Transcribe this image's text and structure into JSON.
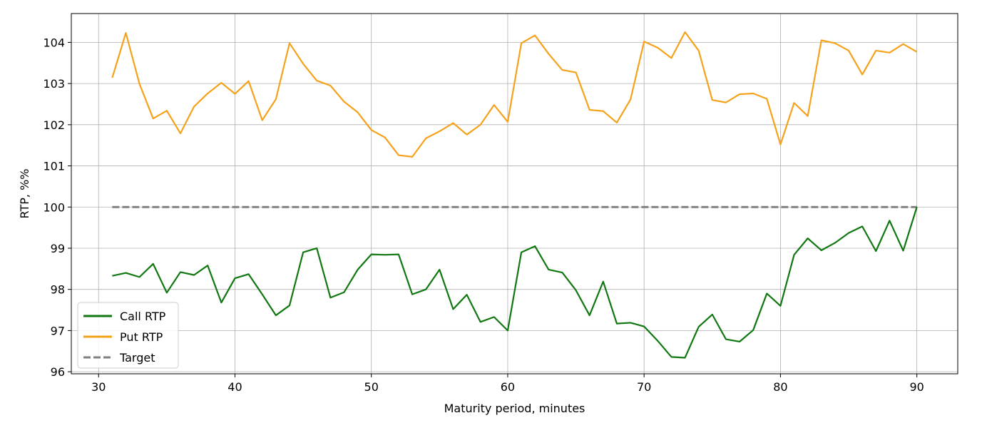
{
  "chart_data": {
    "type": "line",
    "title": "",
    "xlabel": "Maturity period, minutes",
    "ylabel": "RTP, %%",
    "xlim": [
      28,
      93
    ],
    "ylim": [
      95.95,
      104.7
    ],
    "xticks": [
      30,
      40,
      50,
      60,
      70,
      80,
      90
    ],
    "yticks": [
      96,
      97,
      98,
      99,
      100,
      101,
      102,
      103,
      104
    ],
    "grid": true,
    "legend_position": "lower-left",
    "x": [
      31,
      32,
      33,
      34,
      35,
      36,
      37,
      38,
      39,
      40,
      41,
      42,
      43,
      44,
      45,
      46,
      47,
      48,
      49,
      50,
      51,
      52,
      53,
      54,
      55,
      56,
      57,
      58,
      59,
      60,
      61,
      62,
      63,
      64,
      65,
      66,
      67,
      68,
      69,
      70,
      71,
      72,
      73,
      74,
      75,
      76,
      77,
      78,
      79,
      80,
      81,
      82,
      83,
      84,
      85,
      86,
      87,
      88,
      89,
      90
    ],
    "series": [
      {
        "name": "Call RTP",
        "color": "#117711",
        "style": "solid",
        "values": [
          98.33,
          98.4,
          98.3,
          98.62,
          97.92,
          98.42,
          98.35,
          98.58,
          97.68,
          98.27,
          98.37,
          97.88,
          97.37,
          97.61,
          98.9,
          99.0,
          97.8,
          97.93,
          98.48,
          98.85,
          98.84,
          98.85,
          97.88,
          98.0,
          98.48,
          97.52,
          97.87,
          97.21,
          97.33,
          97.0,
          98.9,
          99.05,
          98.48,
          98.41,
          97.98,
          97.37,
          98.19,
          97.17,
          97.19,
          97.1,
          96.75,
          96.36,
          96.34,
          97.09,
          97.39,
          96.79,
          96.73,
          97.01,
          97.9,
          97.6,
          98.84,
          99.24,
          98.95,
          99.13,
          99.37,
          99.53,
          98.93,
          99.67,
          98.94,
          100.0
        ]
      },
      {
        "name": "Put RTP",
        "color": "#f5a21b",
        "style": "solid",
        "values": [
          103.14,
          104.23,
          102.99,
          102.15,
          102.34,
          101.79,
          102.44,
          102.76,
          103.02,
          102.75,
          103.06,
          102.11,
          102.62,
          103.98,
          103.48,
          103.07,
          102.95,
          102.56,
          102.3,
          101.87,
          101.69,
          101.26,
          101.22,
          101.67,
          101.84,
          102.04,
          101.76,
          102.0,
          102.48,
          102.07,
          103.98,
          104.17,
          103.72,
          103.33,
          103.27,
          102.36,
          102.33,
          102.05,
          102.61,
          104.02,
          103.87,
          103.62,
          104.25,
          103.8,
          102.6,
          102.54,
          102.74,
          102.76,
          102.63,
          101.52,
          102.53,
          102.21,
          104.05,
          103.98,
          103.8,
          103.22,
          103.8,
          103.75,
          103.96,
          103.77
        ]
      },
      {
        "name": "Target",
        "color": "#808080",
        "style": "dashed",
        "values": [
          100,
          100,
          100,
          100,
          100,
          100,
          100,
          100,
          100,
          100,
          100,
          100,
          100,
          100,
          100,
          100,
          100,
          100,
          100,
          100,
          100,
          100,
          100,
          100,
          100,
          100,
          100,
          100,
          100,
          100,
          100,
          100,
          100,
          100,
          100,
          100,
          100,
          100,
          100,
          100,
          100,
          100,
          100,
          100,
          100,
          100,
          100,
          100,
          100,
          100,
          100,
          100,
          100,
          100,
          100,
          100,
          100,
          100,
          100,
          100
        ]
      }
    ]
  }
}
